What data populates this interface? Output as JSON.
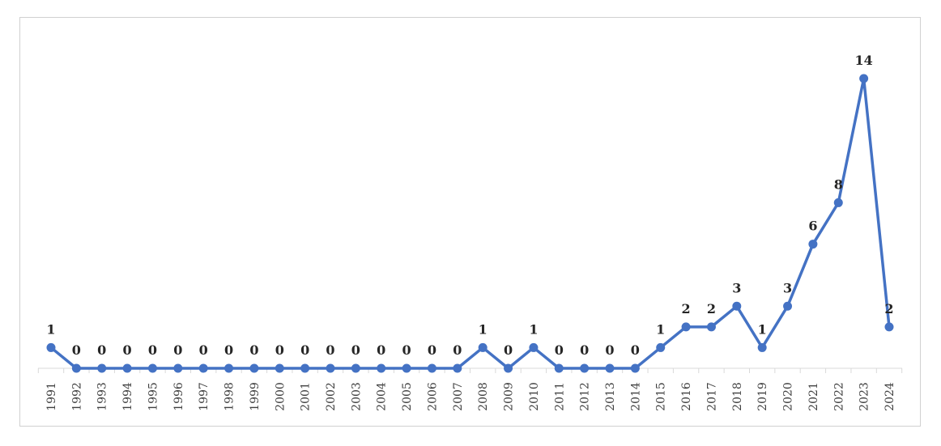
{
  "chart_data": {
    "type": "line",
    "title": "",
    "xlabel": "",
    "ylabel": "",
    "categories": [
      "1991",
      "1992",
      "1993",
      "1994",
      "1995",
      "1996",
      "1997",
      "1998",
      "1999",
      "2000",
      "2001",
      "2002",
      "2003",
      "2004",
      "2005",
      "2006",
      "2007",
      "2008",
      "2009",
      "2010",
      "2011",
      "2012",
      "2013",
      "2014",
      "2015",
      "2016",
      "2017",
      "2018",
      "2019",
      "2020",
      "2021",
      "2022",
      "2023",
      "2024"
    ],
    "series": [
      {
        "values": [
          1,
          0,
          0,
          0,
          0,
          0,
          0,
          0,
          0,
          0,
          0,
          0,
          0,
          0,
          0,
          0,
          0,
          1,
          0,
          1,
          0,
          0,
          0,
          0,
          1,
          2,
          2,
          3,
          1,
          3,
          6,
          8,
          14,
          2
        ],
        "color": "#4472c4"
      }
    ],
    "ylim": [
      0,
      14
    ],
    "grid": false,
    "legend": "none",
    "data_labels": true
  }
}
